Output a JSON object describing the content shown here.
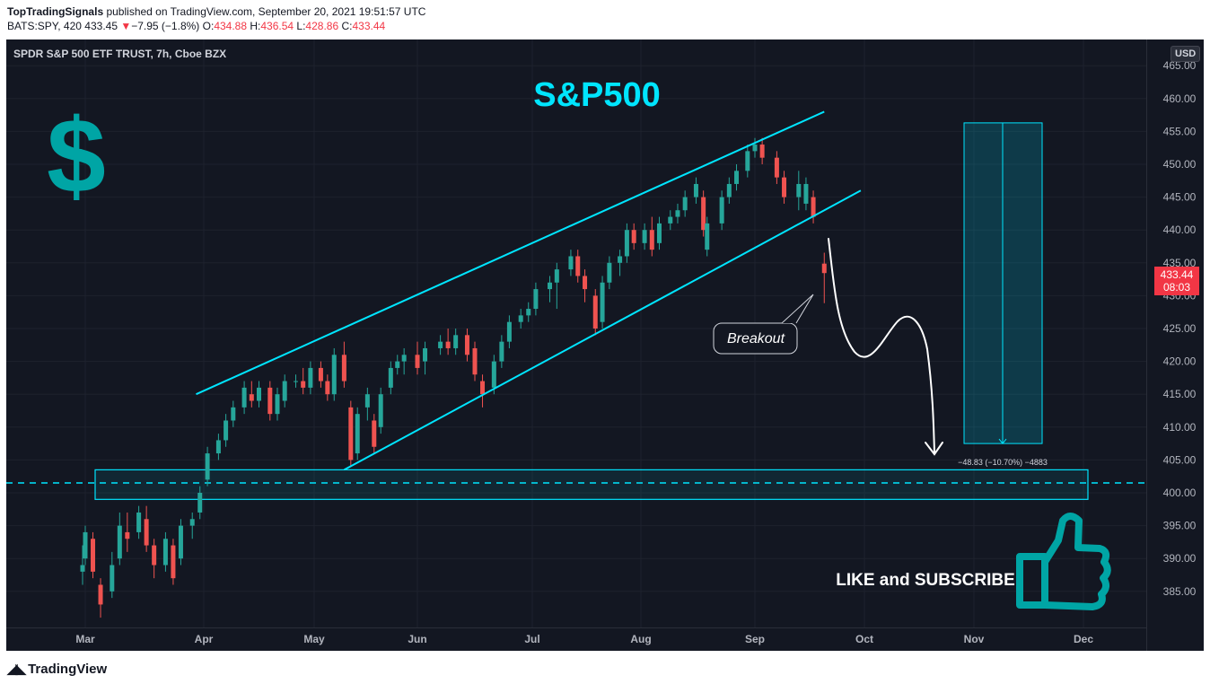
{
  "header": {
    "author": "TopTradingSignals",
    "published_text": " published on TradingView.com, September 20, 2021 19:51:57 UTC",
    "ticker": "BATS:SPY, 420",
    "last": "433.45",
    "change_arrow": "▼",
    "change": "−7.95 (−1.8%)",
    "o_label": "O:",
    "o": "434.88",
    "h_label": "H:",
    "h": "436.54",
    "l_label": "L:",
    "l": "428.86",
    "c_label": "C:",
    "c": "433.44"
  },
  "chart": {
    "instrument": "SPDR S&P 500 ETF TRUST, 7h, Cboe BZX",
    "currency": "USD",
    "price_tag": "433.44",
    "countdown": "08:03",
    "colors": {
      "up": "#26a69a",
      "down": "#ef5350",
      "channel": "#00e5ff",
      "tag": "#f23645",
      "teal": "#00a5a5"
    }
  },
  "annotations": {
    "title": "S&P500",
    "dollar": "$",
    "breakout": "Breakout",
    "measure": "−48.83 (−10.70%) −4883",
    "cta": "LIKE and SUBSCRIBE"
  },
  "chart_data": {
    "type": "candlestick",
    "title": "SPDR S&P 500 ETF TRUST, 7h, Cboe BZX",
    "ylabel": "USD",
    "y_ticks": [
      385,
      390,
      395,
      400,
      405,
      410,
      415,
      420,
      425,
      430,
      435,
      440,
      445,
      450,
      455,
      460,
      465
    ],
    "ylim": [
      380,
      466
    ],
    "x_ticks": [
      "Mar",
      "Apr",
      "May",
      "Jun",
      "Jul",
      "Aug",
      "Sep",
      "Oct",
      "Nov",
      "Dec"
    ],
    "support_level": 401.5,
    "support_zone": [
      399,
      403.5
    ],
    "upper_channel": {
      "from": [
        "Mar 30",
        415
      ],
      "to": [
        "Sep 20",
        458
      ]
    },
    "lower_channel": {
      "from": [
        "May 10",
        403.5
      ],
      "to": [
        "Sep 30",
        446
      ]
    },
    "projection": {
      "from": 456.3,
      "to": 407.5,
      "change": -48.83,
      "change_pct": -10.7
    },
    "series": [
      {
        "t": "Feb 26",
        "o": 388,
        "h": 392,
        "l": 386,
        "c": 389
      },
      {
        "t": "Mar 1",
        "o": 390,
        "h": 395,
        "l": 389,
        "c": 394
      },
      {
        "t": "Mar 3",
        "o": 393,
        "h": 394,
        "l": 387,
        "c": 388
      },
      {
        "t": "Mar 5",
        "o": 386,
        "h": 387,
        "l": 381,
        "c": 383
      },
      {
        "t": "Mar 8",
        "o": 385,
        "h": 391,
        "l": 384,
        "c": 389
      },
      {
        "t": "Mar 10",
        "o": 390,
        "h": 397,
        "l": 389,
        "c": 395
      },
      {
        "t": "Mar 12",
        "o": 394,
        "h": 397,
        "l": 391,
        "c": 393
      },
      {
        "t": "Mar 15",
        "o": 394,
        "h": 398,
        "l": 393,
        "c": 397
      },
      {
        "t": "Mar 17",
        "o": 396,
        "h": 398,
        "l": 391,
        "c": 392
      },
      {
        "t": "Mar 19",
        "o": 392,
        "h": 393,
        "l": 387,
        "c": 389
      },
      {
        "t": "Mar 22",
        "o": 389,
        "h": 394,
        "l": 388,
        "c": 393
      },
      {
        "t": "Mar 24",
        "o": 392,
        "h": 393,
        "l": 386,
        "c": 387
      },
      {
        "t": "Mar 26",
        "o": 390,
        "h": 396,
        "l": 389,
        "c": 395
      },
      {
        "t": "Mar 29",
        "o": 395,
        "h": 397,
        "l": 393,
        "c": 396
      },
      {
        "t": "Mar 31",
        "o": 397,
        "h": 401,
        "l": 396,
        "c": 400
      },
      {
        "t": "Apr 2",
        "o": 402,
        "h": 407,
        "l": 401,
        "c": 406
      },
      {
        "t": "Apr 5",
        "o": 406,
        "h": 409,
        "l": 405,
        "c": 408
      },
      {
        "t": "Apr 7",
        "o": 408,
        "h": 412,
        "l": 407,
        "c": 411
      },
      {
        "t": "Apr 9",
        "o": 411,
        "h": 414,
        "l": 410,
        "c": 413
      },
      {
        "t": "Apr 12",
        "o": 413,
        "h": 417,
        "l": 412,
        "c": 416
      },
      {
        "t": "Apr 14",
        "o": 415,
        "h": 417,
        "l": 413,
        "c": 414
      },
      {
        "t": "Apr 16",
        "o": 414,
        "h": 417,
        "l": 413,
        "c": 416
      },
      {
        "t": "Apr 19",
        "o": 416,
        "h": 417,
        "l": 411,
        "c": 412
      },
      {
        "t": "Apr 21",
        "o": 412,
        "h": 416,
        "l": 411,
        "c": 415
      },
      {
        "t": "Apr 23",
        "o": 414,
        "h": 418,
        "l": 413,
        "c": 417
      },
      {
        "t": "Apr 26",
        "o": 417,
        "h": 418,
        "l": 416,
        "c": 417
      },
      {
        "t": "Apr 28",
        "o": 417,
        "h": 419,
        "l": 415,
        "c": 416
      },
      {
        "t": "Apr 30",
        "o": 416,
        "h": 420,
        "l": 415,
        "c": 419
      },
      {
        "t": "May 3",
        "o": 419,
        "h": 420,
        "l": 416,
        "c": 417
      },
      {
        "t": "May 5",
        "o": 417,
        "h": 418,
        "l": 414,
        "c": 415
      },
      {
        "t": "May 7",
        "o": 415,
        "h": 422,
        "l": 414,
        "c": 421
      },
      {
        "t": "May 10",
        "o": 421,
        "h": 423,
        "l": 416,
        "c": 417
      },
      {
        "t": "May 12",
        "o": 413,
        "h": 414,
        "l": 404,
        "c": 405
      },
      {
        "t": "May 14",
        "o": 406,
        "h": 413,
        "l": 405,
        "c": 412
      },
      {
        "t": "May 17",
        "o": 413,
        "h": 416,
        "l": 411,
        "c": 415
      },
      {
        "t": "May 19",
        "o": 411,
        "h": 412,
        "l": 406,
        "c": 407
      },
      {
        "t": "May 21",
        "o": 410,
        "h": 416,
        "l": 409,
        "c": 415
      },
      {
        "t": "May 24",
        "o": 416,
        "h": 420,
        "l": 415,
        "c": 419
      },
      {
        "t": "May 26",
        "o": 419,
        "h": 421,
        "l": 418,
        "c": 420
      },
      {
        "t": "May 28",
        "o": 420,
        "h": 422,
        "l": 418,
        "c": 421
      },
      {
        "t": "Jun 1",
        "o": 421,
        "h": 423,
        "l": 418,
        "c": 419
      },
      {
        "t": "Jun 3",
        "o": 420,
        "h": 423,
        "l": 418,
        "c": 422
      },
      {
        "t": "Jun 7",
        "o": 422,
        "h": 424,
        "l": 421,
        "c": 423
      },
      {
        "t": "Jun 9",
        "o": 423,
        "h": 425,
        "l": 421,
        "c": 422
      },
      {
        "t": "Jun 11",
        "o": 422,
        "h": 425,
        "l": 421,
        "c": 424
      },
      {
        "t": "Jun 14",
        "o": 424,
        "h": 425,
        "l": 420,
        "c": 421
      },
      {
        "t": "Jun 16",
        "o": 422,
        "h": 423,
        "l": 417,
        "c": 418
      },
      {
        "t": "Jun 18",
        "o": 417,
        "h": 418,
        "l": 413,
        "c": 415
      },
      {
        "t": "Jun 21",
        "o": 416,
        "h": 421,
        "l": 415,
        "c": 420
      },
      {
        "t": "Jun 23",
        "o": 420,
        "h": 424,
        "l": 419,
        "c": 423
      },
      {
        "t": "Jun 25",
        "o": 423,
        "h": 427,
        "l": 422,
        "c": 426
      },
      {
        "t": "Jun 28",
        "o": 426,
        "h": 428,
        "l": 425,
        "c": 427
      },
      {
        "t": "Jun 30",
        "o": 427,
        "h": 429,
        "l": 426,
        "c": 428
      },
      {
        "t": "Jul 2",
        "o": 428,
        "h": 432,
        "l": 427,
        "c": 431
      },
      {
        "t": "Jul 6",
        "o": 431,
        "h": 433,
        "l": 429,
        "c": 432
      },
      {
        "t": "Jul 8",
        "o": 432,
        "h": 435,
        "l": 428,
        "c": 434
      },
      {
        "t": "Jul 12",
        "o": 434,
        "h": 437,
        "l": 433,
        "c": 436
      },
      {
        "t": "Jul 14",
        "o": 436,
        "h": 437,
        "l": 432,
        "c": 433
      },
      {
        "t": "Jul 16",
        "o": 433,
        "h": 434,
        "l": 429,
        "c": 431
      },
      {
        "t": "Jul 19",
        "o": 430,
        "h": 431,
        "l": 424,
        "c": 425
      },
      {
        "t": "Jul 21",
        "o": 426,
        "h": 433,
        "l": 425,
        "c": 432
      },
      {
        "t": "Jul 23",
        "o": 432,
        "h": 436,
        "l": 431,
        "c": 435
      },
      {
        "t": "Jul 26",
        "o": 435,
        "h": 437,
        "l": 433,
        "c": 436
      },
      {
        "t": "Jul 28",
        "o": 436,
        "h": 441,
        "l": 435,
        "c": 440
      },
      {
        "t": "Jul 30",
        "o": 440,
        "h": 441,
        "l": 437,
        "c": 438
      },
      {
        "t": "Aug 2",
        "o": 438,
        "h": 441,
        "l": 437,
        "c": 440
      },
      {
        "t": "Aug 4",
        "o": 440,
        "h": 442,
        "l": 436,
        "c": 437
      },
      {
        "t": "Aug 6",
        "o": 438,
        "h": 442,
        "l": 437,
        "c": 441
      },
      {
        "t": "Aug 9",
        "o": 441,
        "h": 443,
        "l": 440,
        "c": 442
      },
      {
        "t": "Aug 11",
        "o": 442,
        "h": 444,
        "l": 441,
        "c": 443
      },
      {
        "t": "Aug 13",
        "o": 443,
        "h": 446,
        "l": 442,
        "c": 445
      },
      {
        "t": "Aug 16",
        "o": 445,
        "h": 448,
        "l": 444,
        "c": 447
      },
      {
        "t": "Aug 18",
        "o": 445,
        "h": 446,
        "l": 439,
        "c": 440
      },
      {
        "t": "Aug 19",
        "o": 437,
        "h": 442,
        "l": 436,
        "c": 441
      },
      {
        "t": "Aug 23",
        "o": 441,
        "h": 446,
        "l": 440,
        "c": 445
      },
      {
        "t": "Aug 25",
        "o": 445,
        "h": 448,
        "l": 444,
        "c": 447
      },
      {
        "t": "Aug 27",
        "o": 447,
        "h": 450,
        "l": 446,
        "c": 449
      },
      {
        "t": "Aug 30",
        "o": 449,
        "h": 453,
        "l": 448,
        "c": 452
      },
      {
        "t": "Sep 1",
        "o": 452,
        "h": 454,
        "l": 451,
        "c": 453
      },
      {
        "t": "Sep 3",
        "o": 453,
        "h": 454,
        "l": 450,
        "c": 451
      },
      {
        "t": "Sep 7",
        "o": 451,
        "h": 452,
        "l": 447,
        "c": 448
      },
      {
        "t": "Sep 9",
        "o": 448,
        "h": 449,
        "l": 444,
        "c": 445
      },
      {
        "t": "Sep 13",
        "o": 445,
        "h": 449,
        "l": 443,
        "c": 447
      },
      {
        "t": "Sep 15",
        "o": 444,
        "h": 448,
        "l": 443,
        "c": 447
      },
      {
        "t": "Sep 17",
        "o": 445,
        "h": 446,
        "l": 441,
        "c": 442
      },
      {
        "t": "Sep 20",
        "o": 434.88,
        "h": 436.54,
        "l": 428.86,
        "c": 433.44
      }
    ]
  }
}
